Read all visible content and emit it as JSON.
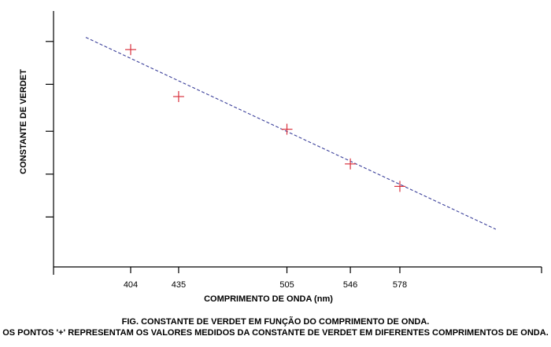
{
  "chart_data": {
    "type": "scatter",
    "xlabel": "COMPRIMENTO DE ONDA (nm)",
    "ylabel": "CONSTANTE DE VERDET",
    "x_ticks": [
      "404",
      "435",
      "505",
      "546",
      "578"
    ],
    "y_tick_labels_shown": false,
    "grid": false,
    "series": [
      {
        "marker": "+",
        "color": "#d9333f",
        "points": [
          {
            "x": 404,
            "y": 5.4
          },
          {
            "x": 435,
            "y": 4.25
          },
          {
            "x": 505,
            "y": 3.45
          },
          {
            "x": 546,
            "y": 2.6
          },
          {
            "x": 578,
            "y": 2.05
          }
        ]
      }
    ],
    "trend_line": {
      "style": "dashed",
      "color": "#3a3f9a",
      "from": {
        "x": 375,
        "y": 5.7
      },
      "to": {
        "x": 640,
        "y": 1.0
      }
    }
  },
  "caption": {
    "line1": "FIG. CONSTANTE DE VERDET EM FUNÇÃO DO COMPRIMENTO DE ONDA.",
    "line2": "OS PONTOS '+' REPRESENTAM OS VALORES MEDIDOS DA CONSTANTE DE VERDET EM DIFERENTES COMPRIMENTOS DE ONDA."
  }
}
